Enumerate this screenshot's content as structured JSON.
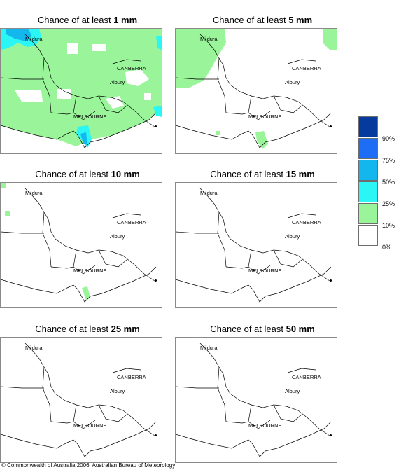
{
  "panels": [
    {
      "prefix": "Chance of at least ",
      "amount": "1 mm"
    },
    {
      "prefix": "Chance of at least ",
      "amount": "5 mm"
    },
    {
      "prefix": "Chance of at least ",
      "amount": "10 mm"
    },
    {
      "prefix": "Chance of at least ",
      "amount": "15 mm"
    },
    {
      "prefix": "Chance of at least ",
      "amount": "25 mm"
    },
    {
      "prefix": "Chance of at least ",
      "amount": "50 mm"
    }
  ],
  "towns": {
    "mildura": "Mildura",
    "canberra": "CANBERRA",
    "albury": "Albury",
    "melbourne": "MELBOURNE"
  },
  "legend": {
    "labels": [
      "90%",
      "75%",
      "50%",
      "25%",
      "10%",
      "0%"
    ],
    "colors": [
      "#063a9c",
      "#1e6ef5",
      "#14b6ee",
      "#2af7f5",
      "#9af59a",
      "#ffffff"
    ]
  },
  "copyright": "© Commonwealth of Australia 2006, Australian Bureau of Meteorology"
}
